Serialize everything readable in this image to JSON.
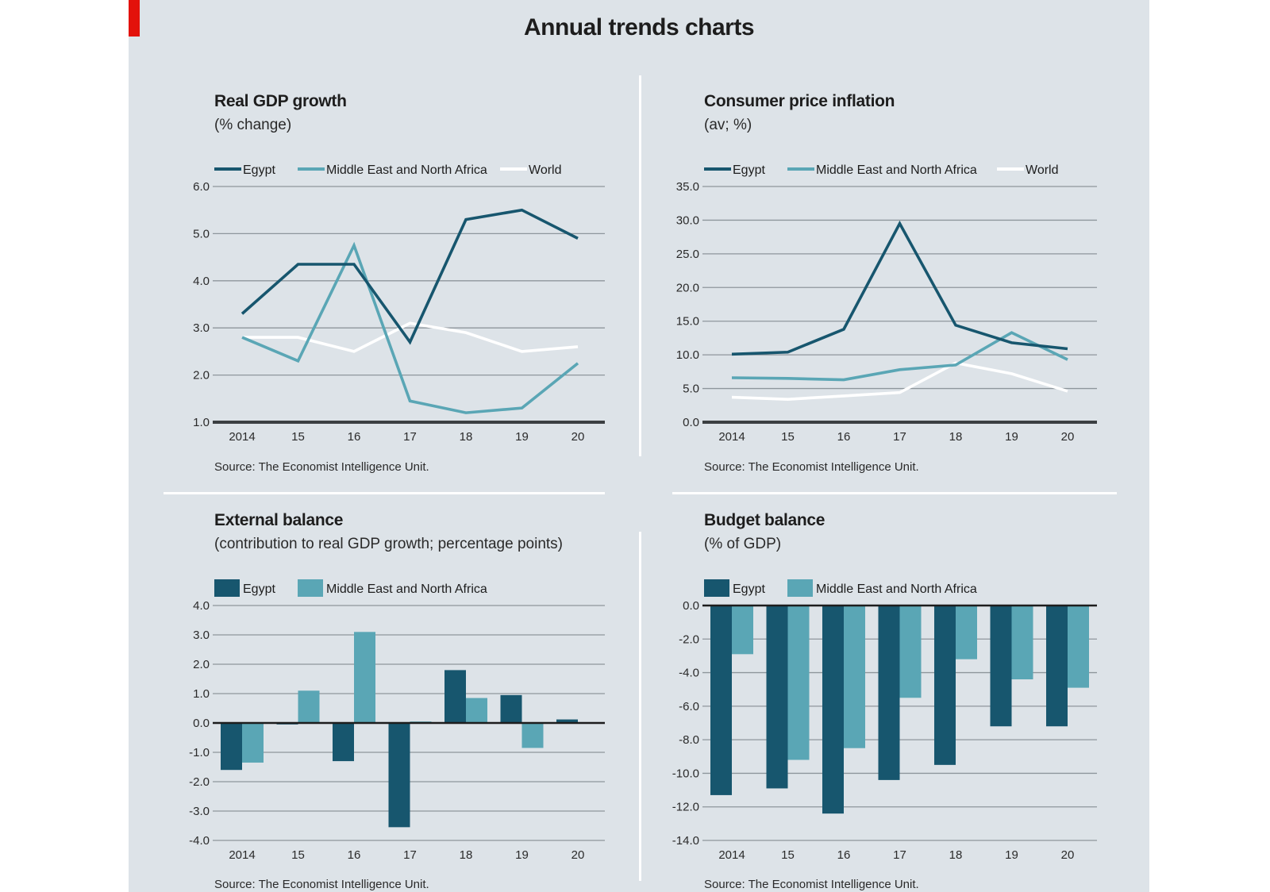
{
  "title": "Annual trends charts",
  "colors": {
    "egypt": "#17566e",
    "mena": "#5aa6b5",
    "world": "#ffffff",
    "grid": "#8e969c",
    "axis": "#3b3f42",
    "background": "#dde3e8",
    "accent": "#e3120b"
  },
  "chart_data": [
    {
      "type": "line",
      "title": "Real GDP growth",
      "subtitle": "(% change)",
      "source": "Source: The Economist Intelligence Unit.",
      "categories": [
        "2014",
        "15",
        "16",
        "17",
        "18",
        "19",
        "20"
      ],
      "ylim": [
        1,
        6
      ],
      "yticks": [
        "6.0",
        "5.0",
        "4.0",
        "3.0",
        "2.0",
        "1.0"
      ],
      "legend_position": "top",
      "series": [
        {
          "name": "Egypt",
          "color": "#17566e",
          "values": [
            3.3,
            4.35,
            4.35,
            2.7,
            5.3,
            5.5,
            4.9
          ]
        },
        {
          "name": "Middle East and North Africa",
          "color": "#5aa6b5",
          "values": [
            2.8,
            2.3,
            4.75,
            1.45,
            1.2,
            1.3,
            2.25
          ]
        },
        {
          "name": "World",
          "color": "#ffffff",
          "values": [
            2.8,
            2.8,
            2.5,
            3.1,
            2.9,
            2.5,
            2.6
          ]
        }
      ]
    },
    {
      "type": "line",
      "title": "Consumer price inflation",
      "subtitle": "(av; %)",
      "source": "Source: The Economist Intelligence Unit.",
      "categories": [
        "2014",
        "15",
        "16",
        "17",
        "18",
        "19",
        "20"
      ],
      "ylim": [
        0,
        35
      ],
      "yticks": [
        "35.0",
        "30.0",
        "25.0",
        "20.0",
        "15.0",
        "10.0",
        "5.0",
        "0.0"
      ],
      "legend_position": "top",
      "series": [
        {
          "name": "Egypt",
          "color": "#17566e",
          "values": [
            10.1,
            10.4,
            13.8,
            29.5,
            14.4,
            11.8,
            10.9
          ]
        },
        {
          "name": "Middle East and North Africa",
          "color": "#5aa6b5",
          "values": [
            6.6,
            6.5,
            6.3,
            7.8,
            8.5,
            13.3,
            9.3
          ]
        },
        {
          "name": "World",
          "color": "#ffffff",
          "values": [
            3.7,
            3.4,
            3.9,
            4.4,
            8.8,
            7.2,
            4.6
          ]
        }
      ]
    },
    {
      "type": "bar",
      "title": "External balance",
      "subtitle": "(contribution to real GDP growth; percentage points)",
      "source": "Source: The Economist Intelligence Unit.",
      "categories": [
        "2014",
        "15",
        "16",
        "17",
        "18",
        "19",
        "20"
      ],
      "ylim": [
        -4,
        4
      ],
      "yticks": [
        "4.0",
        "3.0",
        "2.0",
        "1.0",
        "0.0",
        "-1.0",
        "-2.0",
        "-3.0",
        "-4.0"
      ],
      "legend_position": "top",
      "series": [
        {
          "name": "Egypt",
          "color": "#17566e",
          "values": [
            -1.6,
            -0.05,
            -1.3,
            -3.55,
            1.8,
            0.95,
            0.12
          ]
        },
        {
          "name": "Middle East and North Africa",
          "color": "#5aa6b5",
          "values": [
            -1.35,
            1.1,
            3.1,
            0.05,
            0.85,
            -0.85,
            0.0
          ]
        }
      ]
    },
    {
      "type": "bar",
      "title": "Budget balance",
      "subtitle": "(% of GDP)",
      "source": "Source: The Economist Intelligence Unit.",
      "categories": [
        "2014",
        "15",
        "16",
        "17",
        "18",
        "19",
        "20"
      ],
      "ylim": [
        -14,
        0
      ],
      "yticks": [
        "0.0",
        "-2.0",
        "-4.0",
        "-6.0",
        "-8.0",
        "-10.0",
        "-12.0",
        "-14.0"
      ],
      "legend_position": "top",
      "series": [
        {
          "name": "Egypt",
          "color": "#17566e",
          "values": [
            -11.3,
            -10.9,
            -12.4,
            -10.4,
            -9.5,
            -7.2,
            -7.2
          ]
        },
        {
          "name": "Middle East and North Africa",
          "color": "#5aa6b5",
          "values": [
            -2.9,
            -9.2,
            -8.5,
            -5.5,
            -3.2,
            -4.4,
            -4.9
          ]
        }
      ]
    }
  ]
}
